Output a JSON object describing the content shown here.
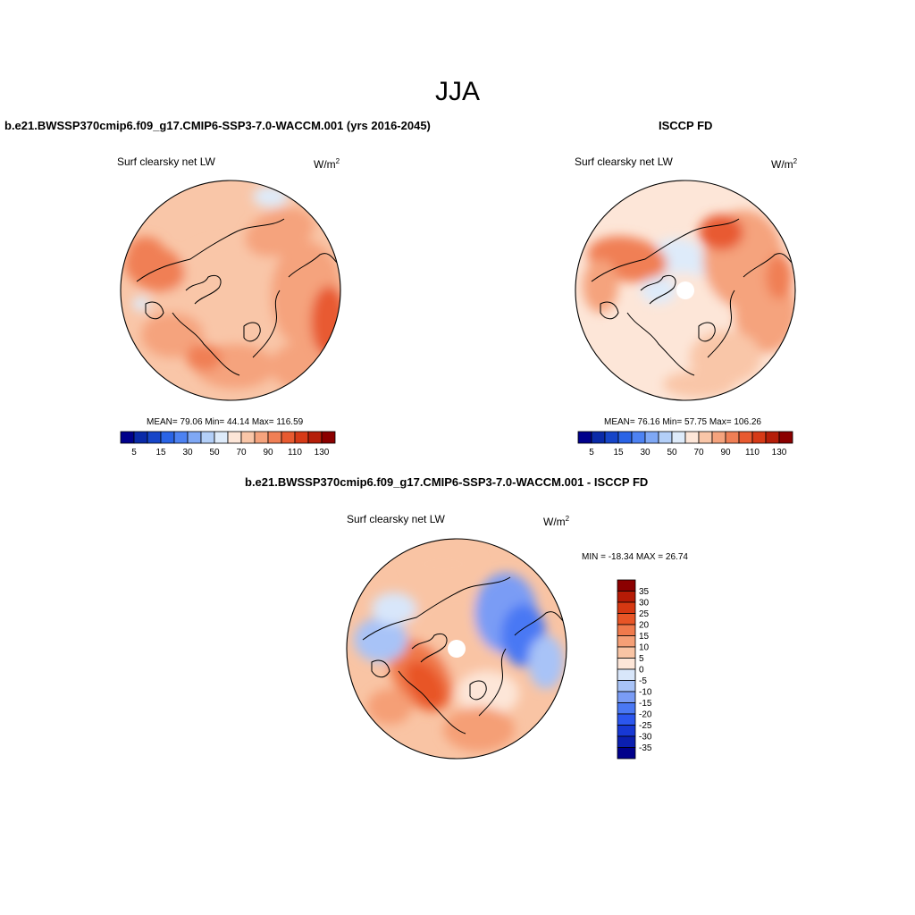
{
  "season": "JJA",
  "panels": [
    {
      "title": "b.e21.BWSSP370cmip6.f09_g17.CMIP6-SSP3-7.0-WACCM.001 (yrs 2016-2045)",
      "variable": "Surf clearsky net LW",
      "units_base": "W/m",
      "units_exp": "2",
      "stats_text": "MEAN=  79.06  Min=  44.14  Max= 116.59",
      "stats": {
        "mean": 79.06,
        "min": 44.14,
        "max": 116.59
      },
      "has_pole_hole": false
    },
    {
      "title": "ISCCP FD",
      "variable": "Surf clearsky net LW",
      "units_base": "W/m",
      "units_exp": "2",
      "stats_text": "MEAN=  76.16  Min=  57.75  Max= 106.26",
      "stats": {
        "mean": 76.16,
        "min": 57.75,
        "max": 106.26
      },
      "has_pole_hole": true
    },
    {
      "title": "b.e21.BWSSP370cmip6.f09_g17.CMIP6-SSP3-7.0-WACCM.001 - ISCCP FD",
      "variable": "Surf clearsky net LW",
      "units_base": "W/m",
      "units_exp": "2",
      "stats_text": "MIN = -18.34 MAX =  26.74",
      "stats": {
        "min": -18.34,
        "max": 26.74
      },
      "has_pole_hole": true
    }
  ],
  "colorbar_abs": {
    "colors": [
      "#00008b",
      "#0a2aa8",
      "#1645c8",
      "#2a64e6",
      "#4d82f2",
      "#7fa8f5",
      "#b3cff8",
      "#deebfa",
      "#fde6d8",
      "#f9c6a8",
      "#f5a37d",
      "#f07f55",
      "#e85a30",
      "#d63a17",
      "#b51e09",
      "#8b0000"
    ],
    "tick_labels": [
      "5",
      "15",
      "30",
      "50",
      "70",
      "90",
      "110",
      "130"
    ]
  },
  "colorbar_diff": {
    "colors": [
      "#00008b",
      "#0b1fb0",
      "#1738d4",
      "#2b56ef",
      "#4a78f4",
      "#7a9cf5",
      "#a8c3f7",
      "#d8e6fa",
      "#fde6d8",
      "#f9c4a4",
      "#f59f76",
      "#f07a4c",
      "#e85526",
      "#d63812",
      "#b51b06",
      "#8b0000"
    ],
    "tick_labels": [
      "35",
      "30",
      "25",
      "20",
      "15",
      "10",
      "5",
      "0",
      "-5",
      "-10",
      "-15",
      "-20",
      "-25",
      "-30",
      "-35"
    ]
  }
}
